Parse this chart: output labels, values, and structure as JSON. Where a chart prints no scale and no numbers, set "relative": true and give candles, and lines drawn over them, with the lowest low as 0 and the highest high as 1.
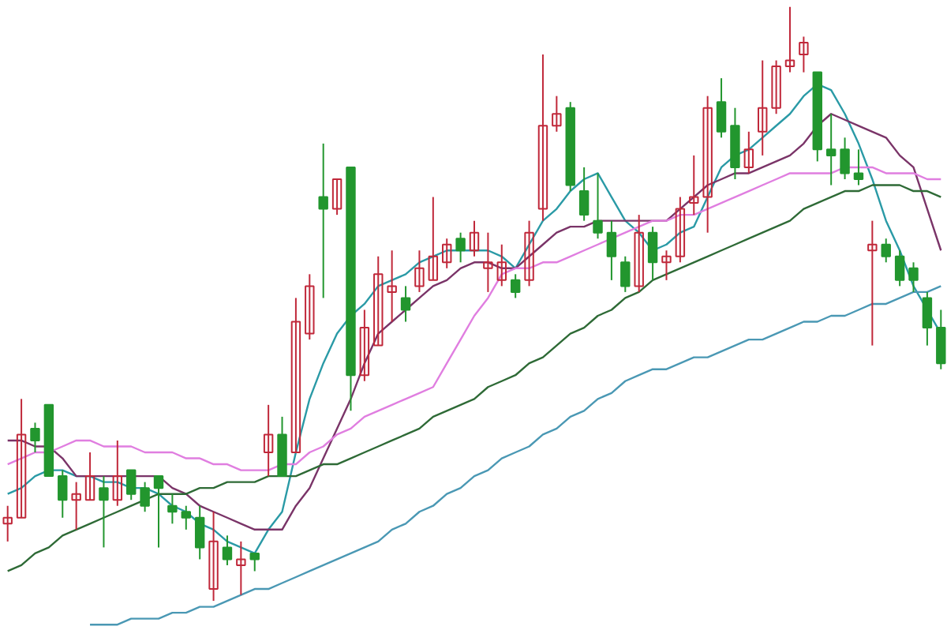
{
  "chart_data": {
    "type": "candlestick",
    "relative": true,
    "categories": [
      null,
      null,
      null,
      null,
      null,
      null,
      null,
      null,
      null,
      null,
      null,
      null,
      null,
      null,
      null,
      null,
      null,
      null,
      null,
      null,
      null,
      null,
      null,
      null,
      null,
      null,
      null,
      null,
      null,
      null,
      null,
      null,
      null,
      null,
      null,
      null,
      null,
      null,
      null,
      null,
      null,
      null,
      null,
      null,
      null,
      null,
      null,
      null,
      null,
      null,
      null,
      null,
      null,
      null,
      null,
      null,
      null,
      null,
      null,
      null,
      null,
      null,
      null,
      null,
      null,
      null,
      null,
      null,
      null
    ],
    "ohlc": [
      [
        0.13,
        0.16,
        0.1,
        0.14
      ],
      [
        0.14,
        0.34,
        0.14,
        0.28
      ],
      [
        0.29,
        0.3,
        0.25,
        0.27
      ],
      [
        0.33,
        0.33,
        0.21,
        0.21
      ],
      [
        0.21,
        0.22,
        0.14,
        0.17
      ],
      [
        0.17,
        0.2,
        0.12,
        0.18
      ],
      [
        0.17,
        0.25,
        0.17,
        0.21
      ],
      [
        0.19,
        0.21,
        0.09,
        0.17
      ],
      [
        0.17,
        0.27,
        0.16,
        0.21
      ],
      [
        0.22,
        0.22,
        0.17,
        0.18
      ],
      [
        0.19,
        0.2,
        0.15,
        0.16
      ],
      [
        0.21,
        0.21,
        0.09,
        0.19
      ],
      [
        0.16,
        0.18,
        0.13,
        0.15
      ],
      [
        0.15,
        0.16,
        0.12,
        0.14
      ],
      [
        0.14,
        0.16,
        0.07,
        0.09
      ],
      [
        0.02,
        0.15,
        0,
        0.1
      ],
      [
        0.09,
        0.11,
        0.06,
        0.07
      ],
      [
        0.06,
        0.1,
        0.01,
        0.07
      ],
      [
        0.08,
        0.08,
        0.05,
        0.07
      ],
      [
        0.25,
        0.33,
        0.21,
        0.28
      ],
      [
        0.28,
        0.31,
        0.21,
        0.21
      ],
      [
        0.25,
        0.51,
        0.25,
        0.47
      ],
      [
        0.45,
        0.55,
        0.44,
        0.53
      ],
      [
        0.68,
        0.77,
        0.51,
        0.66
      ],
      [
        0.66,
        0.71,
        0.65,
        0.71
      ],
      [
        0.73,
        0.73,
        0.32,
        0.38
      ],
      [
        0.38,
        0.49,
        0.37,
        0.46
      ],
      [
        0.43,
        0.58,
        0.43,
        0.55
      ],
      [
        0.52,
        0.59,
        0.47,
        0.53
      ],
      [
        0.51,
        0.53,
        0.47,
        0.49
      ],
      [
        0.53,
        0.59,
        0.52,
        0.56
      ],
      [
        0.54,
        0.68,
        0.54,
        0.58
      ],
      [
        0.57,
        0.61,
        0.56,
        0.6
      ],
      [
        0.61,
        0.62,
        0.57,
        0.59
      ],
      [
        0.59,
        0.64,
        0.58,
        0.62
      ],
      [
        0.56,
        0.62,
        0.52,
        0.57
      ],
      [
        0.54,
        0.6,
        0.53,
        0.57
      ],
      [
        0.54,
        0.55,
        0.51,
        0.52
      ],
      [
        0.54,
        0.64,
        0.53,
        0.62
      ],
      [
        0.66,
        0.92,
        0.64,
        0.8
      ],
      [
        0.8,
        0.85,
        0.79,
        0.82
      ],
      [
        0.83,
        0.84,
        0.69,
        0.7
      ],
      [
        0.69,
        0.73,
        0.64,
        0.65
      ],
      [
        0.64,
        0.72,
        0.61,
        0.62
      ],
      [
        0.62,
        0.64,
        0.54,
        0.58
      ],
      [
        0.57,
        0.58,
        0.52,
        0.53
      ],
      [
        0.53,
        0.65,
        0.52,
        0.62
      ],
      [
        0.62,
        0.63,
        0.54,
        0.57
      ],
      [
        0.57,
        0.59,
        0.54,
        0.58
      ],
      [
        0.58,
        0.68,
        0.57,
        0.66
      ],
      [
        0.67,
        0.75,
        0.65,
        0.68
      ],
      [
        0.68,
        0.85,
        0.62,
        0.83
      ],
      [
        0.84,
        0.88,
        0.78,
        0.79
      ],
      [
        0.8,
        0.83,
        0.71,
        0.73
      ],
      [
        0.73,
        0.79,
        0.72,
        0.76
      ],
      [
        0.79,
        0.91,
        0.75,
        0.83
      ],
      [
        0.83,
        0.91,
        0.82,
        0.9
      ],
      [
        0.9,
        1,
        0.89,
        0.91
      ],
      [
        0.92,
        0.95,
        0.89,
        0.94
      ],
      [
        0.89,
        0.89,
        0.74,
        0.76
      ],
      [
        0.76,
        0.82,
        0.7,
        0.75
      ],
      [
        0.76,
        0.78,
        0.71,
        0.72
      ],
      [
        0.72,
        0.76,
        0.7,
        0.71
      ],
      [
        0.59,
        0.64,
        0.43,
        0.6
      ],
      [
        0.6,
        0.61,
        0.57,
        0.58
      ],
      [
        0.58,
        0.59,
        0.53,
        0.54
      ],
      [
        0.56,
        0.57,
        0.52,
        0.54
      ],
      [
        0.51,
        0.52,
        0.43,
        0.46
      ],
      [
        0.46,
        0.49,
        0.39,
        0.4
      ]
    ],
    "colors": [
      "#c0283a",
      "#c0283a",
      "#22962e",
      "#22962e",
      "#22962e",
      "#c0283a",
      "#c0283a",
      "#22962e",
      "#c0283a",
      "#22962e",
      "#22962e",
      "#22962e",
      "#22962e",
      "#22962e",
      "#22962e",
      "#c0283a",
      "#22962e",
      "#c0283a",
      "#22962e",
      "#c0283a",
      "#22962e",
      "#c0283a",
      "#c0283a",
      "#22962e",
      "#c0283a",
      "#22962e",
      "#c0283a",
      "#c0283a",
      "#c0283a",
      "#22962e",
      "#c0283a",
      "#c0283a",
      "#c0283a",
      "#22962e",
      "#c0283a",
      "#c0283a",
      "#c0283a",
      "#22962e",
      "#c0283a",
      "#c0283a",
      "#c0283a",
      "#22962e",
      "#22962e",
      "#22962e",
      "#22962e",
      "#22962e",
      "#c0283a",
      "#22962e",
      "#c0283a",
      "#c0283a",
      "#c0283a",
      "#c0283a",
      "#22962e",
      "#22962e",
      "#c0283a",
      "#c0283a",
      "#c0283a",
      "#c0283a",
      "#c0283a",
      "#22962e",
      "#22962e",
      "#22962e",
      "#22962e",
      "#c0283a",
      "#22962e",
      "#22962e",
      "#22962e",
      "#22962e",
      "#22962e"
    ],
    "series": [
      {
        "type": "line",
        "color": "#2a9aa6",
        "values": [
          0.18,
          0.19,
          0.21,
          0.22,
          0.22,
          0.21,
          0.21,
          0.2,
          0.2,
          0.19,
          0.19,
          0.18,
          0.16,
          0.15,
          0.13,
          0.12,
          0.1,
          0.09,
          0.08,
          0.12,
          0.15,
          0.25,
          0.34,
          0.4,
          0.45,
          0.48,
          0.5,
          0.53,
          0.54,
          0.55,
          0.57,
          0.58,
          0.59,
          0.59,
          0.59,
          0.59,
          0.58,
          0.56,
          0.6,
          0.64,
          0.66,
          0.69,
          0.71,
          0.72,
          0.68,
          0.64,
          0.62,
          0.59,
          0.6,
          0.62,
          0.63,
          0.68,
          0.73,
          0.75,
          0.76,
          0.78,
          0.8,
          0.82,
          0.85,
          0.87,
          0.86,
          0.82,
          0.77,
          0.71,
          0.64,
          0.59,
          0.53,
          0.49,
          0.45
        ]
      },
      {
        "type": "line",
        "color": "#7a3468",
        "values": [
          0.27,
          0.27,
          0.26,
          0.26,
          0.24,
          0.21,
          0.21,
          0.21,
          0.21,
          0.21,
          0.21,
          0.21,
          0.19,
          0.18,
          0.16,
          0.15,
          0.14,
          0.13,
          0.12,
          0.12,
          0.12,
          0.16,
          0.19,
          0.24,
          0.29,
          0.34,
          0.4,
          0.45,
          0.47,
          0.49,
          0.51,
          0.53,
          0.54,
          0.56,
          0.57,
          0.57,
          0.56,
          0.56,
          0.58,
          0.6,
          0.62,
          0.63,
          0.63,
          0.64,
          0.64,
          0.64,
          0.64,
          0.64,
          0.64,
          0.66,
          0.68,
          0.7,
          0.71,
          0.72,
          0.72,
          0.73,
          0.74,
          0.75,
          0.77,
          0.8,
          0.82,
          0.81,
          0.8,
          0.79,
          0.78,
          0.75,
          0.73,
          0.66,
          0.59
        ]
      },
      {
        "type": "line",
        "color": "#e07ee0",
        "values": [
          0.23,
          0.24,
          0.25,
          0.25,
          0.26,
          0.27,
          0.27,
          0.26,
          0.26,
          0.26,
          0.25,
          0.25,
          0.25,
          0.24,
          0.24,
          0.23,
          0.23,
          0.22,
          0.22,
          0.22,
          0.23,
          0.23,
          0.25,
          0.26,
          0.28,
          0.29,
          0.31,
          0.32,
          0.33,
          0.34,
          0.35,
          0.36,
          0.4,
          0.44,
          0.48,
          0.51,
          0.55,
          0.56,
          0.56,
          0.57,
          0.57,
          0.58,
          0.59,
          0.6,
          0.61,
          0.62,
          0.63,
          0.64,
          0.64,
          0.65,
          0.65,
          0.66,
          0.67,
          0.68,
          0.69,
          0.7,
          0.71,
          0.72,
          0.72,
          0.72,
          0.72,
          0.73,
          0.73,
          0.73,
          0.72,
          0.72,
          0.72,
          0.71,
          0.71
        ]
      },
      {
        "type": "line",
        "color": "#2e6a36",
        "values": [
          0.05,
          0.06,
          0.08,
          0.09,
          0.11,
          0.12,
          0.13,
          0.14,
          0.15,
          0.16,
          0.17,
          0.18,
          0.18,
          0.18,
          0.19,
          0.19,
          0.2,
          0.2,
          0.2,
          0.21,
          0.21,
          0.21,
          0.22,
          0.23,
          0.23,
          0.24,
          0.25,
          0.26,
          0.27,
          0.28,
          0.29,
          0.31,
          0.32,
          0.33,
          0.34,
          0.36,
          0.37,
          0.38,
          0.4,
          0.41,
          0.43,
          0.45,
          0.46,
          0.48,
          0.49,
          0.51,
          0.52,
          0.54,
          0.55,
          0.56,
          0.57,
          0.58,
          0.59,
          0.6,
          0.61,
          0.62,
          0.63,
          0.64,
          0.66,
          0.67,
          0.68,
          0.69,
          0.69,
          0.7,
          0.7,
          0.7,
          0.69,
          0.69,
          0.68
        ]
      },
      {
        "type": "line",
        "color": "#4a98b4",
        "values": [
          null,
          null,
          null,
          null,
          null,
          null,
          -0.04,
          -0.04,
          -0.04,
          -0.03,
          -0.03,
          -0.03,
          -0.02,
          -0.02,
          -0.01,
          -0.01,
          0.0,
          0.01,
          0.02,
          0.02,
          0.03,
          0.04,
          0.05,
          0.06,
          0.07,
          0.08,
          0.09,
          0.1,
          0.12,
          0.13,
          0.15,
          0.16,
          0.18,
          0.19,
          0.21,
          0.22,
          0.24,
          0.25,
          0.26,
          0.28,
          0.29,
          0.31,
          0.32,
          0.34,
          0.35,
          0.37,
          0.38,
          0.39,
          0.39,
          0.4,
          0.41,
          0.41,
          0.42,
          0.43,
          0.44,
          0.44,
          0.45,
          0.46,
          0.47,
          0.47,
          0.48,
          0.48,
          0.49,
          0.5,
          0.5,
          0.51,
          0.52,
          0.52,
          0.53
        ]
      }
    ]
  }
}
